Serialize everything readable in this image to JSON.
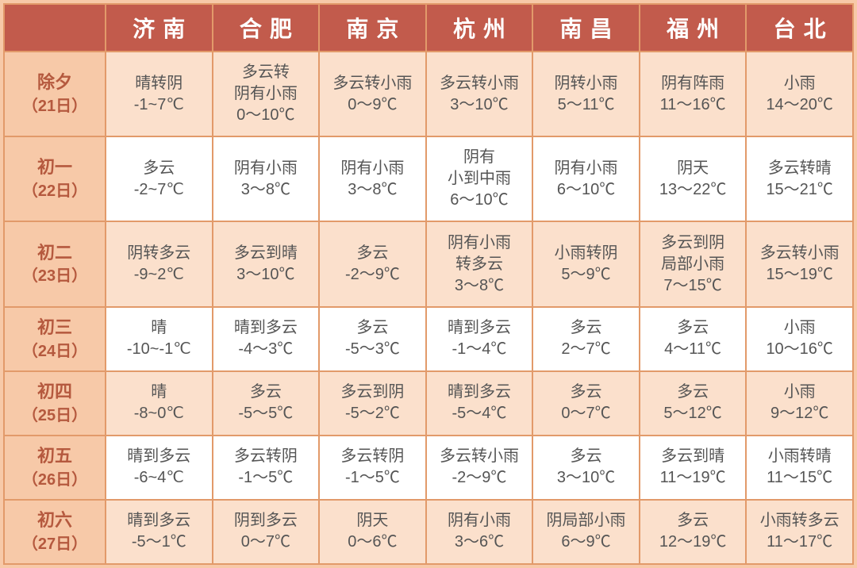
{
  "colors": {
    "header_bg": "#c25b4c",
    "header_text": "#ffffff",
    "border": "#e29a6a",
    "row_alt_bg": "#fbe0cc",
    "row_plain_bg": "#ffffff",
    "rowhead_text": "#b5593e",
    "cell_text": "#555555",
    "page_bg": "#f7c9a8"
  },
  "typography": {
    "header_fontsize": 28,
    "header_letter_spacing": 10,
    "rowhead_fontsize": 22,
    "cell_fontsize": 20,
    "font_family": "Microsoft YaHei"
  },
  "table": {
    "type": "table",
    "columns": [
      "",
      "济南",
      "合肥",
      "南京",
      "杭州",
      "南昌",
      "福州",
      "台北"
    ],
    "rows": [
      {
        "label": "除夕",
        "sub": "（21日）",
        "cells": [
          {
            "w": "晴转阴",
            "t": "-1~7℃"
          },
          {
            "w": "多云转\n阴有小雨",
            "t": "0～10℃"
          },
          {
            "w": "多云转小雨",
            "t": "0～9℃"
          },
          {
            "w": "多云转小雨",
            "t": "3～10℃"
          },
          {
            "w": "阴转小雨",
            "t": "5～11℃"
          },
          {
            "w": "阴有阵雨",
            "t": "11～16℃"
          },
          {
            "w": "小雨",
            "t": "14～20℃"
          }
        ]
      },
      {
        "label": "初一",
        "sub": "（22日）",
        "cells": [
          {
            "w": "多云",
            "t": "-2~7℃"
          },
          {
            "w": "阴有小雨",
            "t": "3～8℃"
          },
          {
            "w": "阴有小雨",
            "t": "3～8℃"
          },
          {
            "w": "阴有\n小到中雨",
            "t": "6～10℃"
          },
          {
            "w": "阴有小雨",
            "t": "6～10℃"
          },
          {
            "w": "阴天",
            "t": "13～22℃"
          },
          {
            "w": "多云转晴",
            "t": "15～21℃"
          }
        ]
      },
      {
        "label": "初二",
        "sub": "（23日）",
        "cells": [
          {
            "w": "阴转多云",
            "t": "-9~2℃"
          },
          {
            "w": "多云到晴",
            "t": "3～10℃"
          },
          {
            "w": "多云",
            "t": "-2～9℃"
          },
          {
            "w": "阴有小雨\n转多云",
            "t": "3～8℃"
          },
          {
            "w": "小雨转阴",
            "t": "5～9℃"
          },
          {
            "w": "多云到阴\n局部小雨",
            "t": "7～15℃"
          },
          {
            "w": "多云转小雨",
            "t": "15～19℃"
          }
        ]
      },
      {
        "label": "初三",
        "sub": "（24日）",
        "cells": [
          {
            "w": "晴",
            "t": "-10~-1℃"
          },
          {
            "w": "晴到多云",
            "t": "-4～3℃"
          },
          {
            "w": "多云",
            "t": "-5～3℃"
          },
          {
            "w": "晴到多云",
            "t": "-1～4℃"
          },
          {
            "w": "多云",
            "t": "2～7℃"
          },
          {
            "w": "多云",
            "t": "4～11℃"
          },
          {
            "w": "小雨",
            "t": "10～16℃"
          }
        ]
      },
      {
        "label": "初四",
        "sub": "（25日）",
        "cells": [
          {
            "w": "晴",
            "t": "-8~0℃"
          },
          {
            "w": "多云",
            "t": "-5～5℃"
          },
          {
            "w": "多云到阴",
            "t": "-5～2℃"
          },
          {
            "w": "晴到多云",
            "t": "-5～4℃"
          },
          {
            "w": "多云",
            "t": "0～7℃"
          },
          {
            "w": "多云",
            "t": "5～12℃"
          },
          {
            "w": "小雨",
            "t": "9～12℃"
          }
        ]
      },
      {
        "label": "初五",
        "sub": "（26日）",
        "cells": [
          {
            "w": "晴到多云",
            "t": "-6~4℃"
          },
          {
            "w": "多云转阴",
            "t": "-1～5℃"
          },
          {
            "w": "多云转阴",
            "t": "-1～5℃"
          },
          {
            "w": "多云转小雨",
            "t": "-2～9℃"
          },
          {
            "w": "多云",
            "t": "3～10℃"
          },
          {
            "w": "多云到晴",
            "t": "11～19℃"
          },
          {
            "w": "小雨转晴",
            "t": "11～15℃"
          }
        ]
      },
      {
        "label": "初六",
        "sub": "（27日）",
        "cells": [
          {
            "w": "晴到多云",
            "t": "-5～1℃"
          },
          {
            "w": "阴到多云",
            "t": "0～7℃"
          },
          {
            "w": "阴天",
            "t": "0～6℃"
          },
          {
            "w": "阴有小雨",
            "t": "3～6℃"
          },
          {
            "w": "阴局部小雨",
            "t": "6～9℃"
          },
          {
            "w": "多云",
            "t": "12～19℃"
          },
          {
            "w": "小雨转多云",
            "t": "11～17℃"
          }
        ]
      }
    ]
  }
}
